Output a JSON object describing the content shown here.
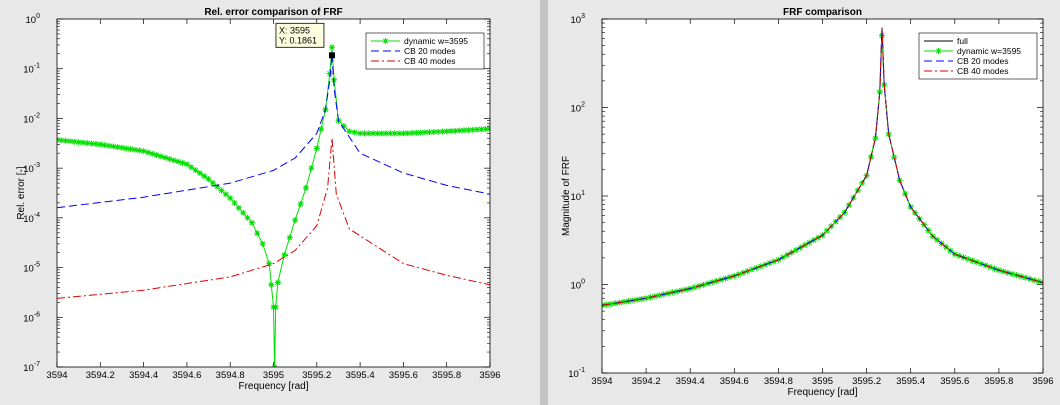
{
  "colors": {
    "background": "#e8e8e8",
    "axes_bg": "#ffffff",
    "divider": "#c4c4c4",
    "green": "#00e000",
    "blue": "#0000ff",
    "red": "#e00000",
    "black": "#000000"
  },
  "chart_data": [
    {
      "type": "line",
      "title": "Rel. error comparison of FRF",
      "xlabel": "Frequency [rad]",
      "ylabel": "Rel. error [-]",
      "xlim": [
        3594,
        3596
      ],
      "ylim": [
        1e-07,
        1
      ],
      "yscale": "log",
      "xticks": [
        "3594",
        "3594.2",
        "3594.4",
        "3594.6",
        "3594.8",
        "3595",
        "3595.2",
        "3595.4",
        "3595.6",
        "3595.8",
        "3596"
      ],
      "yticks": [
        "10^-7",
        "10^-6",
        "10^-5",
        "10^-4",
        "10^-3",
        "10^-2",
        "10^-1",
        "10^0"
      ],
      "legend_position": "top-right",
      "datatip": {
        "x": 3595.27,
        "y": 0.1861,
        "line1": "X: 3595",
        "line2": "Y: 0.1861"
      },
      "series": [
        {
          "name": "dynamic w=3595",
          "color": "green",
          "style": "solid",
          "marker": "*",
          "points": [
            [
              3594.0,
              0.0037
            ],
            [
              3594.2,
              0.003
            ],
            [
              3594.4,
              0.0022
            ],
            [
              3594.6,
              0.0012
            ],
            [
              3594.7,
              0.0006
            ],
            [
              3594.8,
              0.00025
            ],
            [
              3594.9,
              8e-05
            ],
            [
              3594.95,
              3e-05
            ],
            [
              3594.98,
              1.2e-05
            ],
            [
              3594.99,
              4.5e-06
            ],
            [
              3595.0,
              1.6e-06
            ],
            [
              3595.005,
              1e-07
            ],
            [
              3595.01,
              1.6e-06
            ],
            [
              3595.02,
              5e-06
            ],
            [
              3595.05,
              1.8e-05
            ],
            [
              3595.1,
              9e-05
            ],
            [
              3595.15,
              0.0004
            ],
            [
              3595.2,
              0.0025
            ],
            [
              3595.24,
              0.015
            ],
            [
              3595.26,
              0.08
            ],
            [
              3595.27,
              0.27
            ],
            [
              3595.28,
              0.06
            ],
            [
              3595.3,
              0.009
            ],
            [
              3595.35,
              0.0055
            ],
            [
              3595.4,
              0.005
            ],
            [
              3595.6,
              0.005
            ],
            [
              3595.8,
              0.0055
            ],
            [
              3596.0,
              0.0062
            ]
          ]
        },
        {
          "name": "CB 20 modes",
          "color": "blue",
          "style": "dashed",
          "points": [
            [
              3594.0,
              0.00016
            ],
            [
              3594.4,
              0.00026
            ],
            [
              3594.8,
              0.0005
            ],
            [
              3595.0,
              0.0009
            ],
            [
              3595.1,
              0.0016
            ],
            [
              3595.2,
              0.005
            ],
            [
              3595.24,
              0.015
            ],
            [
              3595.26,
              0.06
            ],
            [
              3595.27,
              0.2
            ],
            [
              3595.28,
              0.04
            ],
            [
              3595.3,
              0.009
            ],
            [
              3595.4,
              0.002
            ],
            [
              3595.6,
              0.0008
            ],
            [
              3595.8,
              0.00045
            ],
            [
              3596.0,
              0.0003
            ]
          ]
        },
        {
          "name": "CB 40 modes",
          "color": "red",
          "style": "dashdot",
          "points": [
            [
              3594.0,
              2.4e-06
            ],
            [
              3594.4,
              3.5e-06
            ],
            [
              3594.8,
              6.5e-06
            ],
            [
              3595.0,
              1.2e-05
            ],
            [
              3595.1,
              2.2e-05
            ],
            [
              3595.2,
              7e-05
            ],
            [
              3595.25,
              0.0004
            ],
            [
              3595.27,
              0.004
            ],
            [
              3595.29,
              0.0003
            ],
            [
              3595.35,
              6e-05
            ],
            [
              3595.6,
              1.2e-05
            ],
            [
              3595.8,
              7e-06
            ],
            [
              3596.0,
              4.5e-06
            ]
          ]
        }
      ]
    },
    {
      "type": "line",
      "title": "FRF comparison",
      "xlabel": "Frequency [rad]",
      "ylabel": "Magnitude of FRF",
      "xlim": [
        3594,
        3596
      ],
      "ylim": [
        0.1,
        1000
      ],
      "yscale": "log",
      "xticks": [
        "3594",
        "3594.2",
        "3594.4",
        "3594.6",
        "3594.8",
        "3595",
        "3595.2",
        "3595.4",
        "3595.6",
        "3595.8",
        "3596"
      ],
      "yticks": [
        "10^-1",
        "10^0",
        "10^1",
        "10^2",
        "10^3"
      ],
      "legend_position": "top-right",
      "series": [
        {
          "name": "full",
          "color": "black",
          "style": "solid",
          "points": [
            [
              3594.0,
              0.58
            ],
            [
              3594.2,
              0.7
            ],
            [
              3594.4,
              0.9
            ],
            [
              3594.6,
              1.25
            ],
            [
              3594.8,
              1.9
            ],
            [
              3595.0,
              3.6
            ],
            [
              3595.1,
              6.5
            ],
            [
              3595.2,
              17
            ],
            [
              3595.24,
              45
            ],
            [
              3595.26,
              150
            ],
            [
              3595.27,
              800
            ],
            [
              3595.28,
              180
            ],
            [
              3595.3,
              50
            ],
            [
              3595.35,
              15
            ],
            [
              3595.4,
              7.5
            ],
            [
              3595.5,
              3.5
            ],
            [
              3595.6,
              2.2
            ],
            [
              3595.8,
              1.45
            ],
            [
              3596.0,
              1.05
            ]
          ]
        },
        {
          "name": "dynamic w=3595",
          "color": "green",
          "style": "solid",
          "marker": "*",
          "points": [
            [
              3594.0,
              0.58
            ],
            [
              3594.2,
              0.7
            ],
            [
              3594.4,
              0.9
            ],
            [
              3594.6,
              1.25
            ],
            [
              3594.8,
              1.9
            ],
            [
              3595.0,
              3.6
            ],
            [
              3595.1,
              6.5
            ],
            [
              3595.2,
              17
            ],
            [
              3595.24,
              45
            ],
            [
              3595.26,
              150
            ],
            [
              3595.27,
              650
            ],
            [
              3595.28,
              180
            ],
            [
              3595.3,
              50
            ],
            [
              3595.35,
              15
            ],
            [
              3595.4,
              7.5
            ],
            [
              3595.5,
              3.5
            ],
            [
              3595.6,
              2.2
            ],
            [
              3595.8,
              1.45
            ],
            [
              3596.0,
              1.05
            ]
          ]
        },
        {
          "name": "CB 20 modes",
          "color": "blue",
          "style": "dashed",
          "points": [
            [
              3594.0,
              0.58
            ],
            [
              3594.2,
              0.7
            ],
            [
              3594.4,
              0.9
            ],
            [
              3594.6,
              1.25
            ],
            [
              3594.8,
              1.9
            ],
            [
              3595.0,
              3.6
            ],
            [
              3595.1,
              6.5
            ],
            [
              3595.2,
              17
            ],
            [
              3595.24,
              45
            ],
            [
              3595.26,
              150
            ],
            [
              3595.27,
              780
            ],
            [
              3595.28,
              180
            ],
            [
              3595.3,
              50
            ],
            [
              3595.35,
              15
            ],
            [
              3595.4,
              7.5
            ],
            [
              3595.5,
              3.5
            ],
            [
              3595.6,
              2.2
            ],
            [
              3595.8,
              1.45
            ],
            [
              3596.0,
              1.05
            ]
          ]
        },
        {
          "name": "CB 40 modes",
          "color": "red",
          "style": "dashdot",
          "points": [
            [
              3594.0,
              0.58
            ],
            [
              3594.2,
              0.7
            ],
            [
              3594.4,
              0.9
            ],
            [
              3594.6,
              1.25
            ],
            [
              3594.8,
              1.9
            ],
            [
              3595.0,
              3.6
            ],
            [
              3595.1,
              6.5
            ],
            [
              3595.2,
              17
            ],
            [
              3595.24,
              45
            ],
            [
              3595.26,
              150
            ],
            [
              3595.27,
              790
            ],
            [
              3595.28,
              180
            ],
            [
              3595.3,
              50
            ],
            [
              3595.35,
              15
            ],
            [
              3595.4,
              7.5
            ],
            [
              3595.5,
              3.5
            ],
            [
              3595.6,
              2.2
            ],
            [
              3595.8,
              1.45
            ],
            [
              3596.0,
              1.05
            ]
          ]
        }
      ]
    }
  ]
}
